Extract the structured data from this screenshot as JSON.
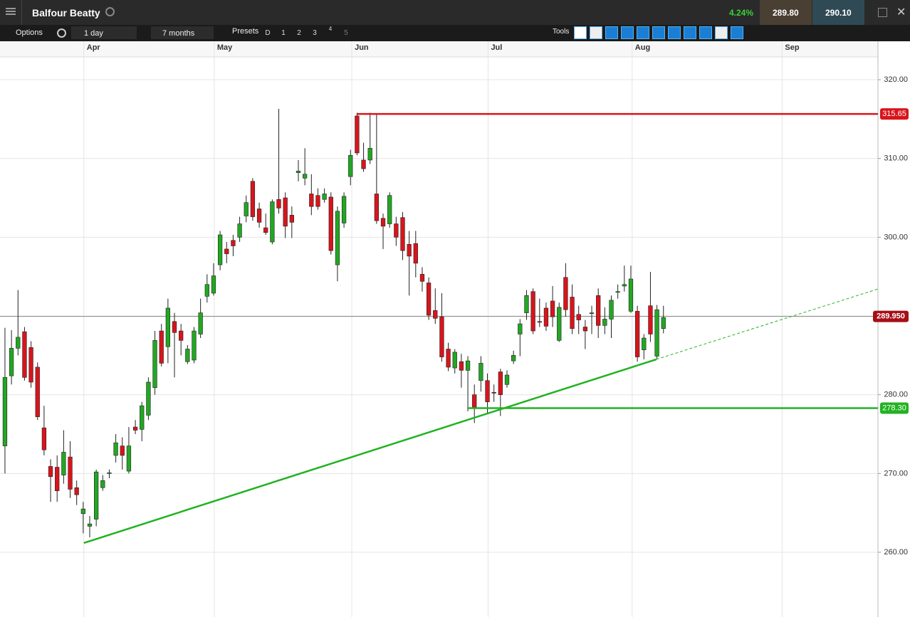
{
  "header": {
    "title": "Balfour Beatty",
    "change": "4.24%",
    "sell": "289.80",
    "buy": "290.10"
  },
  "toolbar": {
    "options": "Options",
    "interval": "1 day",
    "range": "7 months",
    "presets": "Presets",
    "preset_buttons": [
      "D",
      "1",
      "2",
      "3",
      "4",
      "5"
    ],
    "tools": "Tools"
  },
  "chart_data": {
    "type": "candlestick",
    "up_color": "#22a722",
    "down_color": "#d9141b",
    "grid": true,
    "open": [
      273.5,
      282.4,
      285.9,
      288.0,
      286.0,
      283.5,
      275.8,
      270.9,
      270.8,
      269.8,
      272.1,
      268.2,
      264.9,
      263.3,
      264.2,
      268.2,
      270.0,
      272.3,
      273.5,
      270.3,
      275.9,
      275.6,
      277.4,
      280.9,
      288.1,
      286.1,
      289.3,
      288.1,
      284.2,
      284.4,
      287.7,
      292.5,
      292.9,
      296.5,
      298.5,
      299.6,
      300.0,
      302.7,
      307.1,
      303.6,
      301.2,
      299.4,
      304.8,
      305.0,
      302.8,
      308.2,
      307.5,
      305.5,
      305.3,
      304.8,
      305.1,
      296.5,
      301.8,
      307.7,
      315.4,
      309.8,
      309.8,
      305.5,
      302.4,
      301.7,
      301.7,
      302.5,
      299.1,
      299.2,
      295.3,
      294.2,
      290.7,
      289.9,
      285.8,
      283.4,
      284.2,
      283.1,
      280.0,
      281.8,
      281.8,
      280.3,
      282.9,
      281.3,
      284.3,
      287.7,
      290.4,
      293.1,
      289.3,
      291.0,
      291.9,
      286.9,
      294.9,
      292.4,
      290.2,
      288.6,
      290.3,
      292.6,
      288.8,
      289.6,
      293.0,
      293.8,
      290.6,
      290.6,
      285.7,
      291.3,
      284.9,
      288.4
    ],
    "high": [
      288.5,
      288.2,
      293.3,
      288.6,
      286.8,
      284.1,
      278.6,
      271.8,
      272.3,
      275.5,
      274.1,
      269.1,
      266.4,
      264.6,
      270.5,
      269.8,
      270.5,
      275.0,
      274.6,
      275.9,
      276.8,
      279.1,
      282.2,
      288.1,
      289.0,
      292.2,
      290.4,
      289.0,
      286.3,
      288.6,
      292.2,
      295.3,
      296.7,
      300.8,
      299.4,
      300.3,
      302.6,
      305.3,
      307.5,
      304.4,
      303.0,
      304.8,
      316.3,
      305.7,
      303.9,
      309.8,
      311.3,
      308.0,
      306.2,
      306.2,
      305.7,
      303.9,
      305.7,
      311.1,
      315.8,
      312.0,
      315.8,
      315.7,
      303.0,
      305.7,
      302.6,
      303.2,
      300.8,
      300.8,
      296.2,
      294.9,
      293.5,
      292.9,
      286.6,
      285.8,
      285.2,
      284.9,
      281.3,
      284.9,
      282.7,
      281.3,
      283.3,
      283.1,
      285.6,
      289.6,
      293.3,
      293.5,
      292.2,
      291.7,
      293.8,
      291.7,
      296.7,
      294.0,
      291.3,
      289.5,
      291.3,
      293.5,
      291.1,
      292.6,
      294.0,
      296.4,
      296.4,
      291.3,
      287.7,
      295.6,
      291.4,
      291.3
    ],
    "low": [
      270.0,
      281.3,
      285.0,
      281.8,
      280.9,
      276.8,
      272.3,
      266.4,
      266.4,
      268.7,
      266.9,
      266.0,
      262.4,
      261.9,
      263.3,
      267.8,
      269.4,
      271.4,
      270.5,
      270.0,
      275.0,
      274.1,
      276.8,
      280.0,
      283.6,
      284.0,
      282.2,
      285.0,
      283.9,
      284.0,
      287.2,
      291.7,
      292.6,
      295.8,
      296.7,
      297.6,
      299.4,
      301.9,
      302.1,
      301.2,
      300.3,
      299.1,
      303.0,
      299.9,
      299.9,
      307.1,
      306.6,
      302.8,
      303.5,
      304.4,
      297.8,
      294.4,
      301.2,
      306.6,
      310.4,
      308.3,
      309.3,
      301.7,
      298.5,
      301.2,
      298.9,
      297.1,
      292.6,
      294.9,
      293.1,
      289.5,
      289.0,
      284.2,
      283.0,
      282.7,
      280.9,
      277.9,
      276.4,
      280.4,
      277.7,
      279.1,
      277.3,
      280.9,
      283.9,
      284.9,
      289.5,
      287.7,
      288.6,
      288.1,
      288.6,
      286.7,
      289.9,
      287.7,
      287.7,
      285.8,
      287.7,
      287.2,
      287.7,
      287.2,
      292.2,
      293.1,
      290.4,
      284.2,
      284.5,
      286.7,
      284.5,
      287.8
    ],
    "close": [
      282.2,
      285.9,
      287.3,
      282.2,
      281.6,
      277.2,
      273.0,
      269.6,
      267.8,
      272.7,
      268.0,
      267.3,
      265.5,
      263.6,
      270.2,
      269.1,
      270.1,
      273.9,
      272.3,
      273.5,
      275.5,
      278.6,
      281.6,
      286.9,
      284.0,
      291.0,
      287.9,
      286.9,
      285.8,
      288.1,
      290.4,
      294.0,
      295.1,
      300.3,
      297.9,
      298.9,
      301.7,
      304.4,
      302.6,
      301.9,
      300.6,
      304.5,
      303.7,
      301.4,
      301.9,
      308.4,
      308.0,
      303.9,
      303.9,
      305.5,
      298.3,
      303.3,
      305.2,
      310.4,
      310.7,
      308.7,
      311.3,
      302.1,
      301.4,
      305.3,
      300.0,
      298.3,
      297.6,
      296.7,
      294.4,
      290.1,
      289.7,
      284.8,
      283.5,
      285.4,
      283.1,
      284.3,
      278.4,
      284.0,
      279.1,
      280.2,
      280.0,
      282.5,
      285.0,
      289.0,
      292.6,
      288.1,
      289.2,
      288.7,
      289.9,
      291.1,
      290.8,
      288.4,
      289.5,
      288.1,
      290.4,
      288.8,
      289.6,
      292.0,
      293.1,
      294.0,
      294.7,
      284.8,
      287.2,
      287.7,
      290.8,
      289.8
    ],
    "xlim": [
      -0.76,
      133.9
    ],
    "xticks": [
      {
        "value": 12.1,
        "label": "Apr"
      },
      {
        "value": 32.1,
        "label": "May"
      },
      {
        "value": 53.2,
        "label": "Jun"
      },
      {
        "value": 74.1,
        "label": "Jul"
      },
      {
        "value": 96.2,
        "label": "Aug"
      },
      {
        "value": 119.2,
        "label": "Sep"
      }
    ],
    "ylim": [
      251.78,
      324.88
    ],
    "yticks": [
      {
        "value": 260,
        "label": "260.00"
      },
      {
        "value": 270,
        "label": "270.00"
      },
      {
        "value": 280,
        "label": "280.00"
      },
      {
        "value": 290,
        "label": "290.00"
      },
      {
        "value": 300,
        "label": "300.00"
      },
      {
        "value": 310,
        "label": "310.00"
      },
      {
        "value": 320,
        "label": "320.00"
      }
    ],
    "levels": [
      {
        "value": 315.65,
        "label": "315.65",
        "from": 54.05,
        "color": "#d9141b"
      },
      {
        "value": 278.3,
        "label": "278.30",
        "from": 71.0,
        "color": "#22b222"
      }
    ],
    "last_price": {
      "value": 289.95,
      "label": "289.950",
      "color": "#a50f16"
    },
    "trendline": {
      "x": [
        12.1,
        99.9
      ],
      "y": [
        261.18,
        284.49
      ],
      "color": "#22b222"
    },
    "trend_extension": {
      "x": [
        99.9,
        133.9
      ],
      "y": [
        284.49,
        293.43
      ]
    }
  }
}
